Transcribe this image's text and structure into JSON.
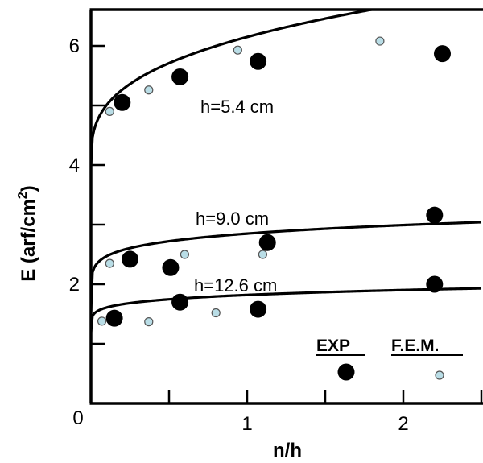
{
  "chart_data": {
    "type": "scatter",
    "xlabel": "n/h",
    "ylabel": "E (arf/cm",
    "ylabel_superscript": "2",
    "ylabel_close": ")",
    "xlim": [
      0,
      2.5
    ],
    "ylim": [
      0,
      6.8
    ],
    "x_ticks": [
      {
        "value": 0,
        "label": "0"
      },
      {
        "value": 1,
        "label": "1"
      },
      {
        "value": 2,
        "label": "2"
      }
    ],
    "y_ticks": [
      {
        "value": 2,
        "label": "2"
      },
      {
        "value": 4,
        "label": "4"
      },
      {
        "value": 6,
        "label": "6"
      }
    ],
    "series": [
      {
        "label": "h=5.4 cm",
        "exp": [
          [
            0.2,
            5.05
          ],
          [
            0.57,
            5.48
          ],
          [
            1.07,
            5.74
          ],
          [
            2.25,
            5.87
          ]
        ],
        "fem": [
          [
            0.12,
            4.9
          ],
          [
            0.37,
            5.26
          ],
          [
            0.94,
            5.93
          ],
          [
            1.85,
            6.08
          ]
        ],
        "curve": {
          "a": 4.0,
          "b": 2.15,
          "p": 0.33
        }
      },
      {
        "label": "h=9.0 cm",
        "exp": [
          [
            0.25,
            2.42
          ],
          [
            0.51,
            2.28
          ],
          [
            1.13,
            2.7
          ],
          [
            2.2,
            3.16
          ]
        ],
        "fem": [
          [
            0.12,
            2.35
          ],
          [
            0.6,
            2.5
          ],
          [
            1.1,
            2.5
          ]
        ],
        "curve": {
          "a": 1.55,
          "b": 1.3,
          "p": 0.15
        }
      },
      {
        "label": "h=12.6 cm",
        "exp": [
          [
            0.15,
            1.43
          ],
          [
            0.57,
            1.7
          ],
          [
            1.07,
            1.58
          ],
          [
            2.2,
            2.0
          ]
        ],
        "fem": [
          [
            0.07,
            1.38
          ],
          [
            0.37,
            1.37
          ],
          [
            0.8,
            1.52
          ]
        ],
        "curve": {
          "a": 1.2,
          "b": 0.62,
          "p": 0.18
        }
      }
    ],
    "legend": {
      "exp_label": "EXP",
      "fem_label": "F.E.M.",
      "location": "lower-right"
    },
    "colors": {
      "exp_marker": "#000000",
      "fem_marker_fill": "#b9dde6",
      "fem_marker_stroke": "#555555",
      "curve": "#000000"
    }
  }
}
